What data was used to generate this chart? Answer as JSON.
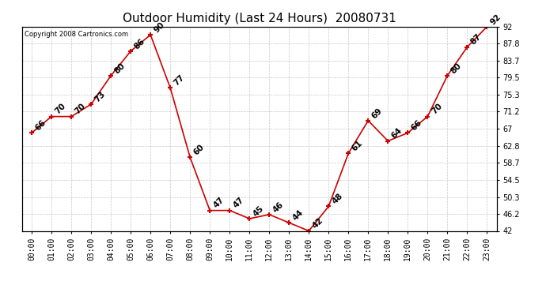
{
  "title": "Outdoor Humidity (Last 24 Hours)  20080731",
  "copyright": "Copyright 2008 Cartronics.com",
  "x_labels": [
    "00:00",
    "01:00",
    "02:00",
    "03:00",
    "04:00",
    "05:00",
    "06:00",
    "07:00",
    "08:00",
    "09:00",
    "10:00",
    "11:00",
    "12:00",
    "13:00",
    "14:00",
    "15:00",
    "16:00",
    "17:00",
    "18:00",
    "19:00",
    "20:00",
    "21:00",
    "22:00",
    "23:00"
  ],
  "x_values": [
    0,
    1,
    2,
    3,
    4,
    5,
    6,
    7,
    8,
    9,
    10,
    11,
    12,
    13,
    14,
    15,
    16,
    17,
    18,
    19,
    20,
    21,
    22,
    23
  ],
  "y_values": [
    66,
    70,
    70,
    73,
    80,
    86,
    90,
    77,
    60,
    47,
    47,
    45,
    46,
    44,
    42,
    48,
    61,
    69,
    64,
    66,
    70,
    80,
    87,
    92
  ],
  "ylim": [
    42.0,
    92.0
  ],
  "yticks": [
    42.0,
    46.2,
    50.3,
    54.5,
    58.7,
    62.8,
    67.0,
    71.2,
    75.3,
    79.5,
    83.7,
    87.8,
    92.0
  ],
  "line_color": "#cc0000",
  "marker_color": "#cc0000",
  "bg_color": "#ffffff",
  "grid_color": "#c8c8c8",
  "title_fontsize": 11,
  "label_fontsize": 7,
  "annotation_fontsize": 7.5
}
